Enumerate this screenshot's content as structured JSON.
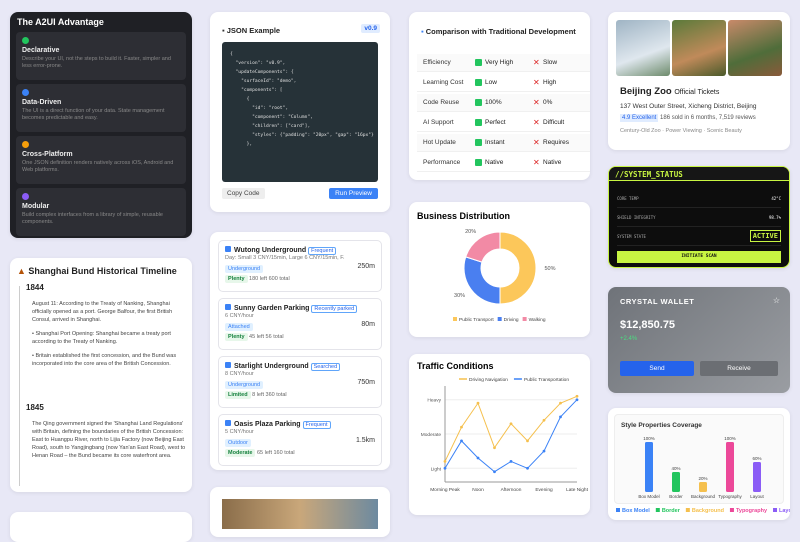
{
  "advantage": {
    "title": "The A2UI Advantage",
    "items": [
      {
        "title": "Declarative",
        "text": "Describe your UI, not the steps to build it. Faster, simpler and less error-prone."
      },
      {
        "title": "Data-Driven",
        "text": "The UI is a direct function of your data. State management becomes predictable and easy."
      },
      {
        "title": "Cross-Platform",
        "text": "One JSON definition renders natively across iOS, Android and Web platforms."
      },
      {
        "title": "Modular",
        "text": "Build complex interfaces from a library of simple, reusable components."
      }
    ]
  },
  "timeline": {
    "title": "Shanghai Bund Historical Timeline",
    "entries": [
      {
        "year": "1844",
        "paragraphs": [
          "August 11: According to the Treaty of Nanking, Shanghai officially opened as a port. George Balfour, the first British Consul, arrived in Shanghai.",
          "• Shanghai Port Opening: Shanghai became a treaty port according to the Treaty of Nanking.",
          "• Britain established the first concession, and the Bund was incorporated into the core area of the British Concession."
        ]
      },
      {
        "year": "1845",
        "paragraphs": [
          "The Qing government signed the 'Shanghai Land Regulations' with Britain, defining the boundaries of the British Concession: East to Huangpu River, north to Lijia Factory (now Beijing East Road), south to Yangjingbang (now Yan'an East Road), west to Henan Road – the Bund became its core waterfront area."
        ]
      }
    ]
  },
  "json_example": {
    "title": "JSON Example",
    "version": "v0.9",
    "code": "{\n  \"version\": \"v0.9\",\n  \"updateComponents\": {\n    \"surfaceId\": \"demo\",\n    \"components\": [\n      {\n        \"id\": \"root\",\n        \"component\": \"Column\",\n        \"children\": [\"card\"],\n        \"styles\": {\"padding\": \"20px\", \"gap\": \"16px\"}\n      },",
    "copy": "Copy Code",
    "run": "Run Preview"
  },
  "parking": [
    {
      "name": "Wutong Underground",
      "tag": "Frequent",
      "detail": "Day: Small 3 CNY/15min, Large 6 CNY/15min, F...",
      "type": "Underground",
      "status": "Plenty",
      "spaces": "180 left 600 total",
      "distance": "250m"
    },
    {
      "name": "Sunny Garden Parking",
      "tag": "Recently parked",
      "detail": "6 CNY/hour",
      "type": "Attached",
      "status": "Plenty",
      "spaces": "45 left 56 total",
      "distance": "80m"
    },
    {
      "name": "Starlight Underground",
      "tag": "Searched",
      "detail": "8 CNY/hour",
      "type": "Underground",
      "status": "Limited",
      "spaces": "8 left 360 total",
      "distance": "750m"
    },
    {
      "name": "Oasis Plaza Parking",
      "tag": "Frequent",
      "detail": "5 CNY/hour",
      "type": "Outdoor",
      "status": "Moderate",
      "spaces": "65 left 160 total",
      "distance": "1.5km"
    }
  ],
  "comparison": {
    "title": "Comparison with Traditional Development",
    "rows": [
      [
        "Efficiency",
        "Very High",
        "Slow"
      ],
      [
        "Learning Cost",
        "Low",
        "High"
      ],
      [
        "Code Reuse",
        "100%",
        "0%"
      ],
      [
        "AI Support",
        "Perfect",
        "Difficult"
      ],
      [
        "Hot Update",
        "Instant",
        "Requires"
      ],
      [
        "Performance",
        "Native",
        "Native"
      ]
    ]
  },
  "zoo": {
    "title": "Beijing Zoo",
    "subtitle": "Official Tickets",
    "address": "137 West Outer Street, Xicheng District, Beijing",
    "rating": "4.9 Excellent",
    "sold": "186 sold in 6 months, 7,519 reviews",
    "tags": "Century-Old Zoo · Power Viewing · Scenic Beauty"
  },
  "system": {
    "title": "//SYSTEM_STATUS",
    "rows": [
      [
        "CORE TEMP",
        "42°C"
      ],
      [
        "SHIELD INTEGRITY",
        "98.7%"
      ],
      [
        "SYSTEM STATE",
        "ACTIVE"
      ]
    ],
    "button": "INITIATE SCAN"
  },
  "wallet": {
    "title": "CRYSTAL WALLET",
    "balance": "$12,850.75",
    "change": "+2.4%",
    "send": "Send",
    "receive": "Receive"
  },
  "chart_data": [
    {
      "type": "pie",
      "title": "Business Distribution",
      "categories": [
        "Public Transport",
        "Driving",
        "Walking"
      ],
      "values": [
        50,
        30,
        20
      ],
      "value_labels": [
        "50%",
        "30%",
        "20%"
      ],
      "colors": [
        "#fcc75a",
        "#4a7ff0",
        "#f28aa5"
      ]
    },
    {
      "type": "line",
      "title": "Traffic Conditions",
      "categories": [
        "Morning Peak",
        null,
        "Noon",
        null,
        "Afternoon",
        null,
        "Evening",
        null,
        "Late Night"
      ],
      "series": [
        {
          "name": "Driving Navigation",
          "color": "#f5c04e",
          "values": [
            1.2,
            2.2,
            2.9,
            1.6,
            2.3,
            1.8,
            2.4,
            2.9,
            3.1
          ]
        },
        {
          "name": "Public Transportation",
          "color": "#3b82f6",
          "values": [
            1.0,
            1.8,
            1.3,
            0.9,
            1.2,
            1.0,
            1.5,
            2.5,
            3.0
          ]
        }
      ],
      "ylim": [
        0.6,
        3.4
      ],
      "yticks": [
        {
          "value": 1,
          "label": "Light"
        },
        {
          "value": 2,
          "label": "Moderate"
        },
        {
          "value": 3,
          "label": "Heavy"
        }
      ],
      "grid": true
    },
    {
      "type": "bar",
      "title": "Style Properties Coverage",
      "categories": [
        "Box Model",
        "Border",
        "Background",
        "Typography",
        "Layout"
      ],
      "values": [
        100,
        40,
        20,
        100,
        60
      ],
      "value_labels": [
        "100%",
        "40%",
        "20%",
        "100%",
        "60%"
      ],
      "colors": [
        "#3b82f6",
        "#22c55e",
        "#f5c04e",
        "#ec4899",
        "#8b5cf6"
      ],
      "ylim": [
        0,
        100
      ]
    }
  ]
}
